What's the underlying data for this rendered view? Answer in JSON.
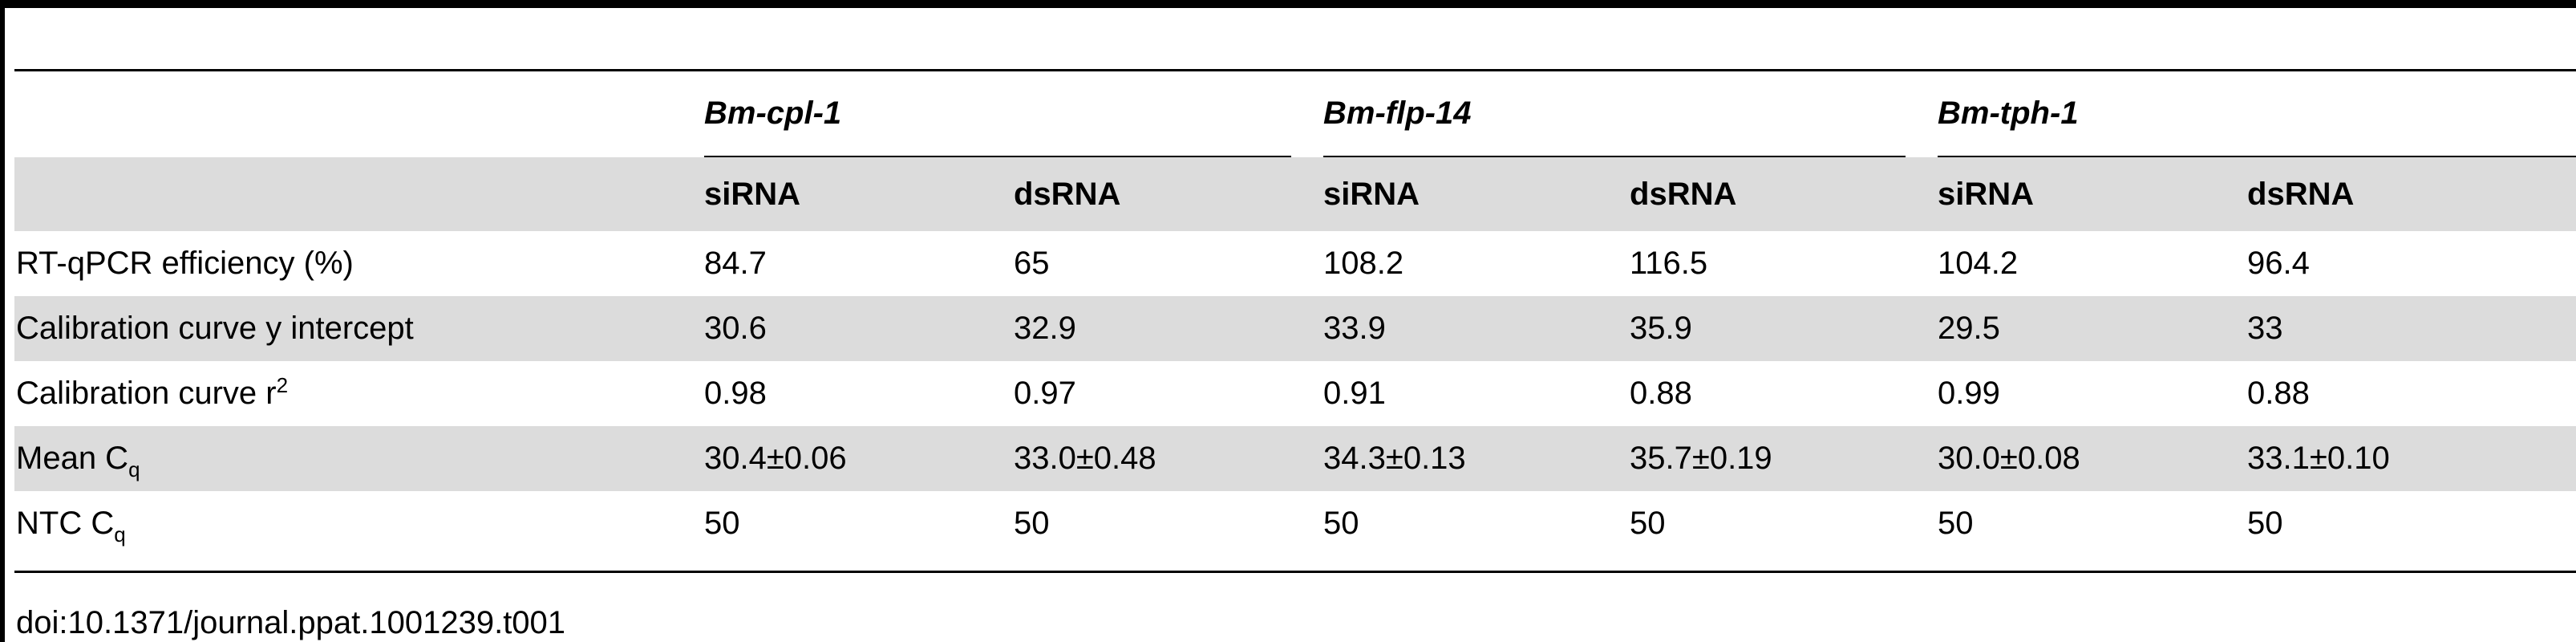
{
  "table": {
    "genes": [
      "Bm-cpl-1",
      "Bm-flp-14",
      "Bm-tph-1"
    ],
    "methods": [
      "siRNA",
      "dsRNA",
      "siRNA",
      "dsRNA",
      "siRNA",
      "dsRNA"
    ],
    "rows": [
      {
        "label": "RT-qPCR efficiency (%)",
        "label_sup": "",
        "label_sub": "",
        "values": [
          "84.7",
          "65",
          "108.2",
          "116.5",
          "104.2",
          "96.4"
        ]
      },
      {
        "label": "Calibration curve y intercept",
        "label_sup": "",
        "label_sub": "",
        "values": [
          "30.6",
          "32.9",
          "33.9",
          "35.9",
          "29.5",
          "33"
        ]
      },
      {
        "label": "Calibration curve r",
        "label_sup": "2",
        "label_sub": "",
        "values": [
          "0.98",
          "0.97",
          "0.91",
          "0.88",
          "0.99",
          "0.88"
        ]
      },
      {
        "label": "Mean C",
        "label_sup": "",
        "label_sub": "q",
        "values": [
          "30.4±0.06",
          "33.0±0.48",
          "34.3±0.13",
          "35.7±0.19",
          "30.0±0.08",
          "33.1±0.10"
        ]
      },
      {
        "label": "NTC C",
        "label_sup": "",
        "label_sub": "q",
        "values": [
          "50",
          "50",
          "50",
          "50",
          "50",
          "50"
        ]
      }
    ]
  },
  "doi": "doi:10.1371/journal.ppat.1001239.t001",
  "colors": {
    "shade": "#dcdcdc",
    "rule": "#000000"
  }
}
